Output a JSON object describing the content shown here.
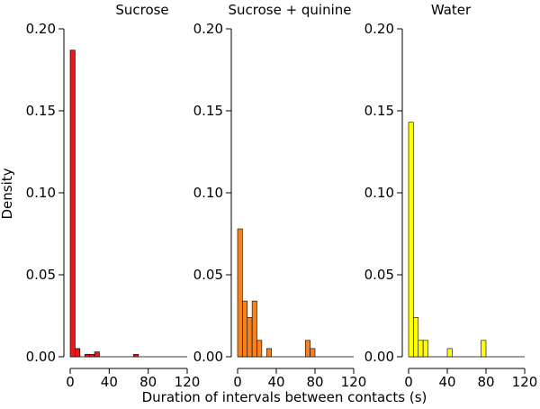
{
  "figure": {
    "ylabel": "Density",
    "xlabel": "Duration of intervals between contacts (s)"
  },
  "chart_data": [
    {
      "type": "bar",
      "title": "Sucrose",
      "color": "#e41a1c",
      "bin_width": 5,
      "xlim": [
        0,
        120
      ],
      "ylim": [
        0,
        0.2
      ],
      "xticks": [
        0,
        40,
        80,
        120
      ],
      "yticks": [
        0.0,
        0.05,
        0.1,
        0.15,
        0.2
      ],
      "bins": [
        {
          "x0": 0,
          "x1": 5,
          "density": 0.187
        },
        {
          "x0": 5,
          "x1": 10,
          "density": 0.005
        },
        {
          "x0": 15,
          "x1": 20,
          "density": 0.0015
        },
        {
          "x0": 20,
          "x1": 25,
          "density": 0.0015
        },
        {
          "x0": 25,
          "x1": 30,
          "density": 0.003
        },
        {
          "x0": 65,
          "x1": 70,
          "density": 0.0015
        }
      ]
    },
    {
      "type": "bar",
      "title": "Sucrose + quinine",
      "color": "#f5821f",
      "bin_width": 5,
      "xlim": [
        0,
        120
      ],
      "ylim": [
        0,
        0.2
      ],
      "xticks": [
        0,
        40,
        80,
        120
      ],
      "yticks": [
        0.0,
        0.05,
        0.1,
        0.15,
        0.2
      ],
      "bins": [
        {
          "x0": 0,
          "x1": 5,
          "density": 0.078
        },
        {
          "x0": 5,
          "x1": 10,
          "density": 0.034
        },
        {
          "x0": 10,
          "x1": 15,
          "density": 0.024
        },
        {
          "x0": 15,
          "x1": 20,
          "density": 0.034
        },
        {
          "x0": 20,
          "x1": 25,
          "density": 0.01
        },
        {
          "x0": 30,
          "x1": 35,
          "density": 0.005
        },
        {
          "x0": 70,
          "x1": 75,
          "density": 0.01
        },
        {
          "x0": 75,
          "x1": 80,
          "density": 0.005
        }
      ]
    },
    {
      "type": "bar",
      "title": "Water",
      "color": "#ffff00",
      "bin_width": 5,
      "xlim": [
        0,
        120
      ],
      "ylim": [
        0,
        0.2
      ],
      "xticks": [
        0,
        40,
        80,
        120
      ],
      "yticks": [
        0.0,
        0.05,
        0.1,
        0.15,
        0.2
      ],
      "bins": [
        {
          "x0": 0,
          "x1": 5,
          "density": 0.143
        },
        {
          "x0": 5,
          "x1": 10,
          "density": 0.024
        },
        {
          "x0": 10,
          "x1": 15,
          "density": 0.01
        },
        {
          "x0": 15,
          "x1": 20,
          "density": 0.01
        },
        {
          "x0": 40,
          "x1": 45,
          "density": 0.005
        },
        {
          "x0": 75,
          "x1": 80,
          "density": 0.01
        }
      ]
    }
  ]
}
